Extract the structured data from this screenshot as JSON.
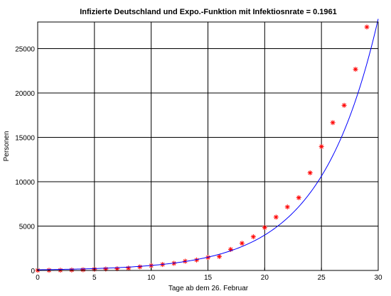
{
  "chart_data": {
    "type": "scatter",
    "title": "Infizierte Deutschland und Expo.-Funktion mit Infektiosnrate = 0.1961",
    "xlabel": "Tage ab dem 26. Februar",
    "ylabel": "Personen",
    "xlim": [
      0,
      30
    ],
    "ylim": [
      0,
      28000
    ],
    "xticks": [
      0,
      5,
      10,
      15,
      20,
      25,
      30
    ],
    "yticks": [
      0,
      5000,
      10000,
      15000,
      20000,
      25000
    ],
    "grid": true,
    "series": [
      {
        "kind": "markers",
        "marker": "asterisk",
        "color": "#ff0000",
        "x": [
          0,
          1,
          2,
          3,
          4,
          5,
          6,
          7,
          8,
          9,
          10,
          11,
          12,
          13,
          14,
          15,
          16,
          17,
          18,
          19,
          20,
          21,
          22,
          23,
          24,
          25,
          26,
          27,
          28,
          29
        ],
        "y": [
          16,
          18,
          26,
          48,
          79,
          130,
          159,
          196,
          262,
          400,
          545,
          670,
          800,
          1040,
          1176,
          1460,
          1570,
          2369,
          3062,
          3795,
          4838,
          6012,
          7156,
          8198,
          10999,
          13957,
          16662,
          18610,
          22672,
          27436
        ]
      },
      {
        "kind": "line",
        "color": "#0000ff",
        "function": "y = 79 * exp(0.1961 * x)",
        "a": 79,
        "rate": 0.1961,
        "x_range": [
          0,
          30
        ]
      }
    ]
  }
}
